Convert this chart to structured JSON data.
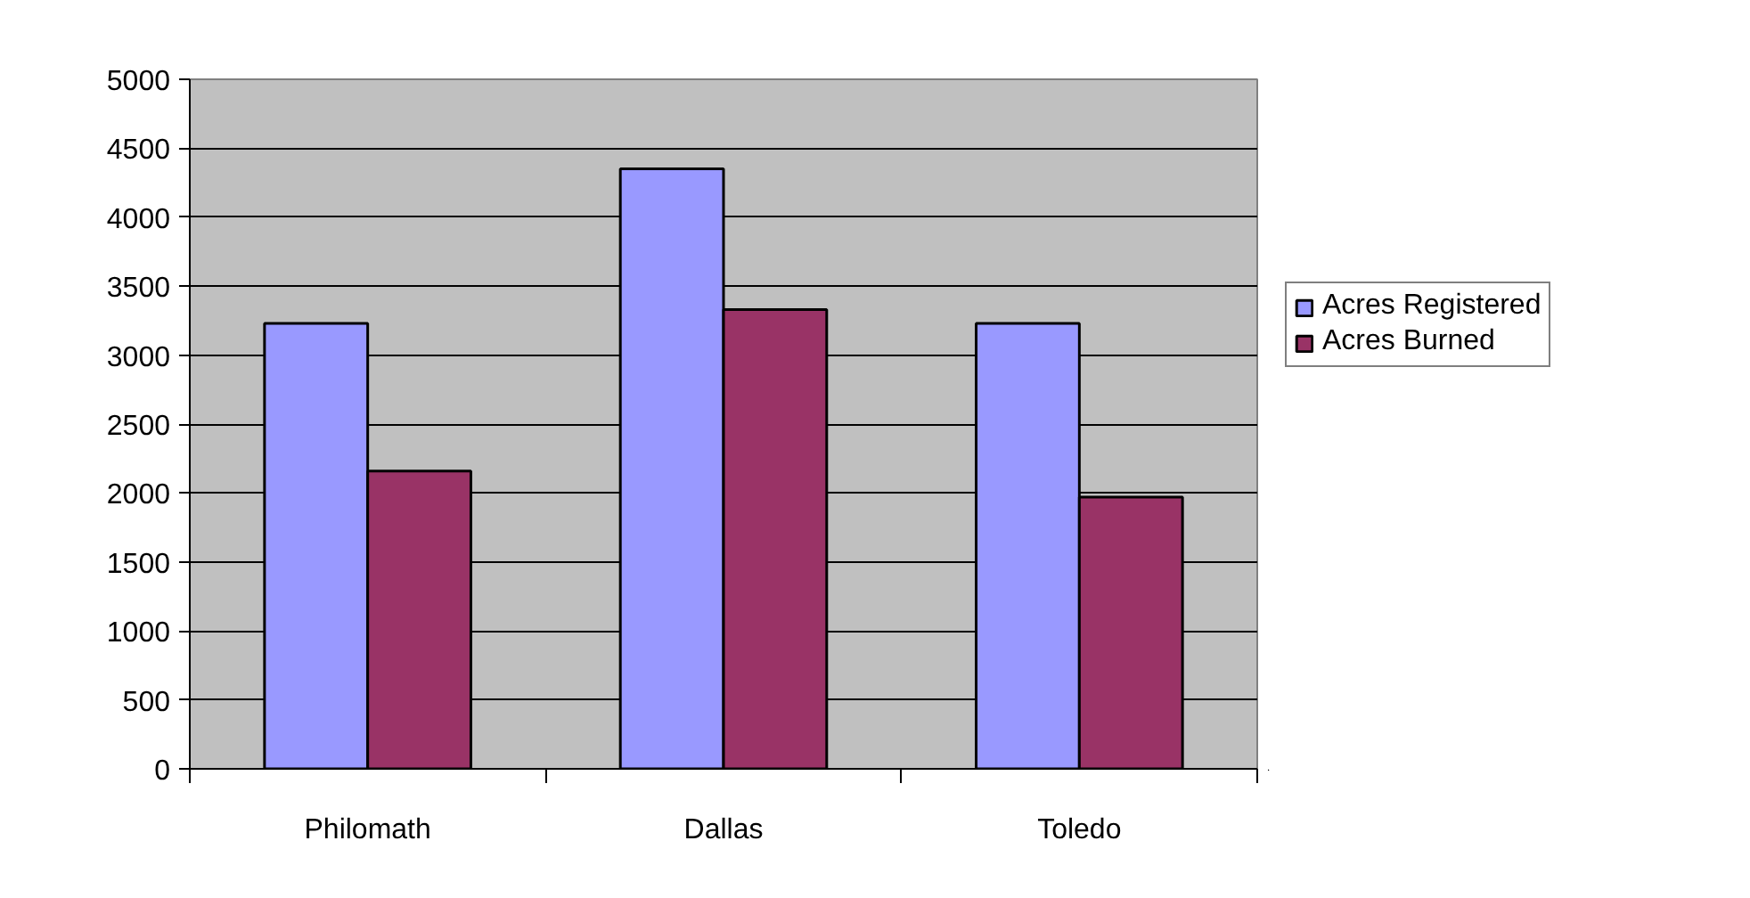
{
  "chart_data": {
    "type": "bar",
    "categories": [
      "Philomath",
      "Dallas",
      "Toledo"
    ],
    "series": [
      {
        "name": "Acres Registered",
        "color": "#9999ff",
        "values": [
          3230,
          4350,
          3230
        ]
      },
      {
        "name": "Acres Burned",
        "color": "#993366",
        "values": [
          2160,
          3330,
          1970
        ]
      }
    ],
    "ylim": [
      0,
      5000
    ],
    "yticks": [
      0,
      500,
      1000,
      1500,
      2000,
      2500,
      3000,
      3500,
      4000,
      4500,
      5000
    ],
    "grid": "y",
    "legend": "right"
  }
}
